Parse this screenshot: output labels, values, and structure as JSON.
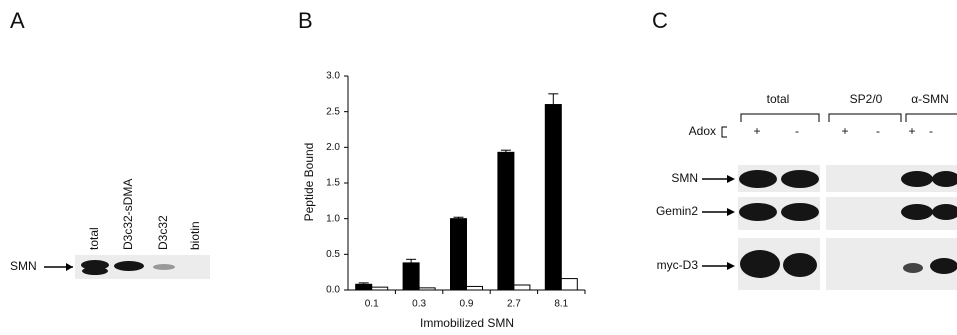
{
  "panel_a": {
    "label": "A",
    "lanes": [
      "total",
      "D3c32-sDMA",
      "D3c32",
      "biotin"
    ],
    "row": "SMN"
  },
  "chart_data": {
    "type": "bar",
    "panel_label": "B",
    "y_label": "Peptide Bound",
    "x_label": "Immobilized SMN",
    "categories": [
      "0.1",
      "0.3",
      "0.9",
      "2.7",
      "8.1"
    ],
    "series": [
      {
        "color": "#000000",
        "values": [
          0.08,
          0.38,
          1.0,
          1.93,
          2.6
        ],
        "errors": [
          0.02,
          0.05,
          0.02,
          0.03,
          0.15
        ]
      },
      {
        "color": "#ffffff",
        "values": [
          0.04,
          0.03,
          0.05,
          0.07,
          0.16
        ]
      }
    ],
    "ylim": [
      0,
      3.0
    ],
    "yticks": [
      {
        "value": 0,
        "label": "0.0"
      },
      0.5,
      {
        "value": 1,
        "label": "1.0"
      },
      1.5,
      {
        "value": 2,
        "label": "2.0"
      },
      2.5,
      {
        "value": 3,
        "label": "3.0"
      }
    ]
  },
  "panel_c": {
    "label": "C",
    "groups": [
      "total",
      "SP2/0",
      "α-SMN"
    ],
    "treatment": "Adox",
    "signs": [
      "+",
      "-",
      "+",
      "-",
      "+",
      "-"
    ],
    "rows": [
      "SMN",
      "Gemin2",
      "myc-D3"
    ]
  }
}
